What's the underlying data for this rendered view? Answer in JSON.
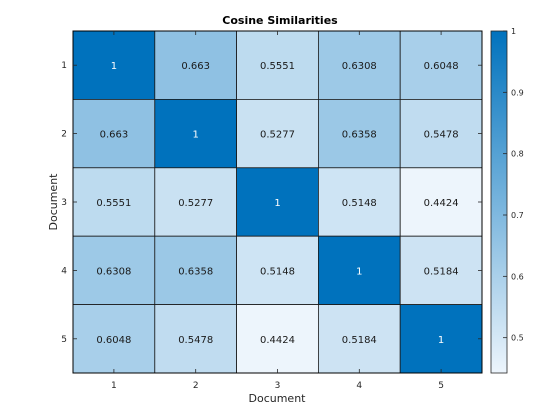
{
  "chart_data": {
    "type": "heatmap",
    "title": "Cosine Similarities",
    "xlabel": "Document",
    "ylabel": "Document",
    "x_categories": [
      "1",
      "2",
      "3",
      "4",
      "5"
    ],
    "y_categories": [
      "1",
      "2",
      "3",
      "4",
      "5"
    ],
    "values": [
      [
        1,
        0.663,
        0.5551,
        0.6308,
        0.6048
      ],
      [
        0.663,
        1,
        0.5277,
        0.6358,
        0.5478
      ],
      [
        0.5551,
        0.5277,
        1,
        0.5148,
        0.4424
      ],
      [
        0.6308,
        0.6358,
        0.5148,
        1,
        0.5184
      ],
      [
        0.6048,
        0.5478,
        0.4424,
        0.5184,
        1
      ]
    ],
    "cell_labels": [
      [
        "1",
        "0.663",
        "0.5551",
        "0.6308",
        "0.6048"
      ],
      [
        "0.663",
        "1",
        "0.5277",
        "0.6358",
        "0.5478"
      ],
      [
        "0.5551",
        "0.5277",
        "1",
        "0.5148",
        "0.4424"
      ],
      [
        "0.6308",
        "0.6358",
        "0.5148",
        "1",
        "0.5184"
      ],
      [
        "0.6048",
        "0.5478",
        "0.4424",
        "0.5184",
        "1"
      ]
    ],
    "colorbar": {
      "range": [
        0.4424,
        1
      ],
      "ticks": [
        0.5,
        0.6,
        0.7,
        0.8,
        0.9,
        1
      ],
      "tick_labels": [
        "0.5",
        "0.6",
        "0.7",
        "0.8",
        "0.9",
        "1"
      ],
      "low_color": "#edf5fc",
      "high_color": "#0072bd"
    }
  }
}
